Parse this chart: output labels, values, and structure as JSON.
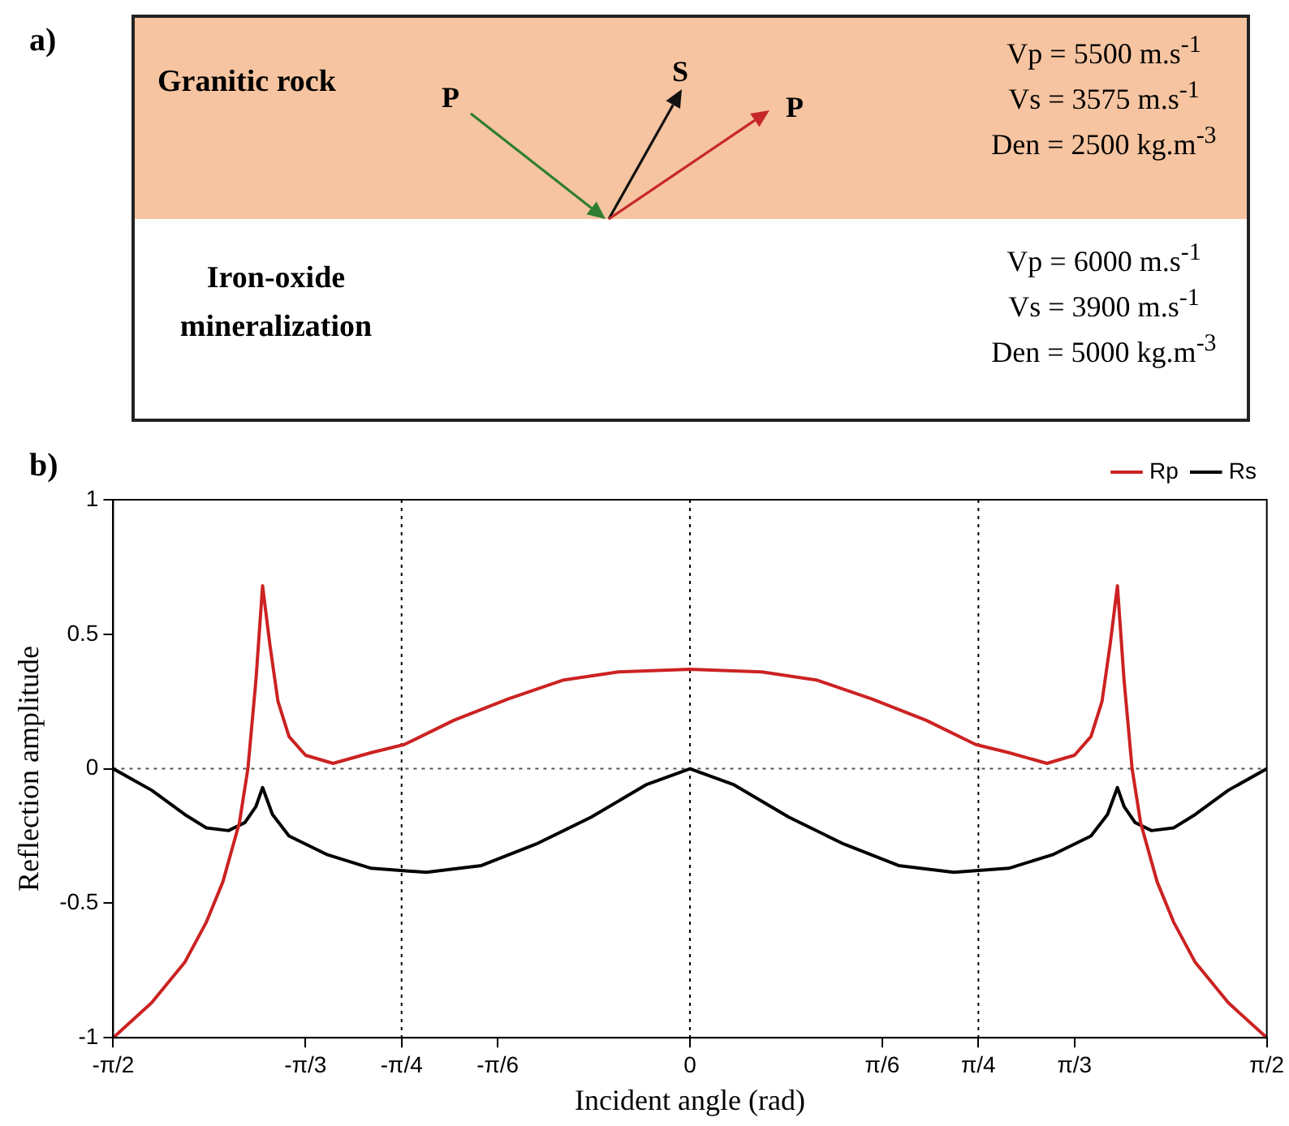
{
  "chart_data": [
    {
      "type": "other",
      "title": "a)",
      "annotations": [
        "Granitic rock",
        "Iron-oxide mineralization",
        "P",
        "S",
        "P",
        "Vp = 5500 m.s$^{-1}$",
        "Vs = 3575 m.s$^{-1}$",
        "Den = 2500 kg.m$^{-3}$",
        "Vp = 6000 m.s$^{-1}$",
        "Vs = 3900 m.s$^{-1}$",
        "Den = 5000 kg.m$^{-3}$"
      ]
    },
    {
      "type": "line",
      "title": "b)",
      "xlabel": "Incident angle (rad)",
      "ylabel": "Reflection amplitude",
      "xlim": [
        -1.5708,
        1.5708
      ],
      "ylim": [
        -1,
        1
      ],
      "xticks": [
        {
          "value": -1.5708,
          "label": "-π/2"
        },
        {
          "value": -1.0472,
          "label": "-π/3"
        },
        {
          "value": -0.7854,
          "label": "-π/4"
        },
        {
          "value": -0.5236,
          "label": "-π/6"
        },
        0,
        {
          "value": 0.5236,
          "label": "π/6"
        },
        {
          "value": 0.7854,
          "label": "π/4"
        },
        {
          "value": 1.0472,
          "label": "π/3"
        },
        {
          "value": 1.5708,
          "label": "π/2"
        }
      ],
      "yticks": [
        -1,
        -0.5,
        0,
        0.5,
        1
      ],
      "legend": "top right",
      "line_style": "solid",
      "marker": "none",
      "ref_lines": [
        {
          "axis": "x",
          "value": -0.7854,
          "line_style": "dotted",
          "color": "#000000"
        },
        {
          "axis": "x",
          "value": 0,
          "line_style": "dotted",
          "color": "#000000"
        },
        {
          "axis": "x",
          "value": 0.7854,
          "line_style": "dotted",
          "color": "#000000"
        },
        {
          "axis": "y",
          "value": 0,
          "line_style": "dotted",
          "color": "#555555"
        }
      ],
      "series": [
        {
          "name": "Rp",
          "color": "#cc2222",
          "x": [
            -1.5708,
            -1.466,
            -1.376,
            -1.317,
            -1.272,
            -1.227,
            -1.204,
            -1.182,
            -1.164,
            -1.144,
            -1.122,
            -1.092,
            -1.047,
            -0.972,
            -0.868,
            -0.778,
            -0.643,
            -0.494,
            -0.344,
            -0.195,
            0,
            0.195,
            0.344,
            0.494,
            0.643,
            0.778,
            0.868,
            0.972,
            1.047,
            1.092,
            1.122,
            1.144,
            1.164,
            1.182,
            1.204,
            1.227,
            1.272,
            1.317,
            1.376,
            1.466,
            1.5708
          ],
          "values": [
            -1,
            -0.87,
            -0.72,
            -0.57,
            -0.42,
            -0.2,
            0,
            0.33,
            0.68,
            0.46,
            0.25,
            0.12,
            0.05,
            0.02,
            0.06,
            0.09,
            0.18,
            0.26,
            0.33,
            0.36,
            0.37,
            0.36,
            0.33,
            0.26,
            0.18,
            0.09,
            0.06,
            0.02,
            0.05,
            0.12,
            0.25,
            0.46,
            0.68,
            0.33,
            0,
            -0.2,
            -0.42,
            -0.57,
            -0.72,
            -0.87,
            -1
          ]
        },
        {
          "name": "Rs",
          "color": "#000000",
          "x": [
            -1.5708,
            -1.466,
            -1.376,
            -1.317,
            -1.257,
            -1.212,
            -1.182,
            -1.164,
            -1.137,
            -1.092,
            -0.987,
            -0.868,
            -0.718,
            -0.568,
            -0.419,
            -0.269,
            -0.12,
            0,
            0.12,
            0.269,
            0.419,
            0.568,
            0.718,
            0.868,
            0.987,
            1.092,
            1.137,
            1.164,
            1.182,
            1.212,
            1.257,
            1.317,
            1.376,
            1.466,
            1.5708
          ],
          "values": [
            0,
            -0.08,
            -0.17,
            -0.22,
            -0.23,
            -0.2,
            -0.14,
            -0.07,
            -0.17,
            -0.25,
            -0.32,
            -0.37,
            -0.385,
            -0.36,
            -0.28,
            -0.18,
            -0.06,
            0,
            -0.06,
            -0.18,
            -0.28,
            -0.36,
            -0.385,
            -0.37,
            -0.32,
            -0.25,
            -0.17,
            -0.07,
            -0.14,
            -0.2,
            -0.23,
            -0.22,
            -0.17,
            -0.08,
            0
          ]
        }
      ]
    }
  ]
}
